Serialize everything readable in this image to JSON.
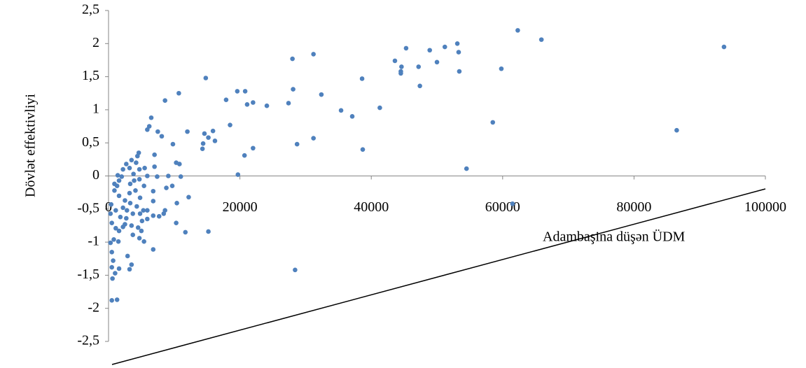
{
  "chart_data": {
    "type": "scatter",
    "x_label": "Adambaşina düşən ÜDM",
    "y_label": "Dövlət effektivliyi",
    "color": "#4f81bd",
    "xlim": [
      0,
      100000
    ],
    "xticks": [
      0,
      20000,
      40000,
      60000,
      80000,
      100000
    ],
    "ylim": [
      -2.5,
      2.5
    ],
    "yticks": [
      {
        "value": -2.5,
        "label": "-2,5"
      },
      -2,
      {
        "value": -1.5,
        "label": "-1,5"
      },
      -1,
      {
        "value": -0.5,
        "label": "-0,5"
      },
      0,
      {
        "value": 0.5,
        "label": "0,5"
      },
      1,
      {
        "value": 1.5,
        "label": "1,5"
      },
      2,
      {
        "value": 2.5,
        "label": "2,5"
      }
    ],
    "x": [
      93700,
      86500,
      62300,
      65900,
      58500,
      59800,
      61500,
      54500,
      53100,
      53300,
      53400,
      51200,
      48900,
      50000,
      47200,
      47400,
      45300,
      43600,
      44600,
      44500,
      44500,
      41300,
      38600,
      38700,
      35400,
      37100,
      32400,
      31200,
      31200,
      28000,
      28100,
      28700,
      28400,
      27400,
      24100,
      22000,
      20800,
      21100,
      22000,
      20700,
      19600,
      19700,
      18500,
      17900,
      16200,
      15900,
      15200,
      14600,
      14400,
      14300,
      14800,
      15200,
      12000,
      12200,
      11700,
      10700,
      11000,
      10800,
      10300,
      10400,
      10300,
      9800,
      9700,
      8600,
      9100,
      8800,
      8600,
      8400,
      8100,
      7700,
      7500,
      7000,
      7400,
      7000,
      6800,
      6800,
      6800,
      6500,
      6200,
      5900,
      5900,
      5500,
      5900,
      5900,
      5300,
      5400,
      6800,
      4600,
      4400,
      4200,
      4700,
      3800,
      3200,
      3500,
      2700,
      2200,
      1600,
      1300,
      900,
      1600,
      2500,
      3300,
      4300,
      4800,
      5100,
      4500,
      3500,
      2500,
      1600,
      1100,
      500,
      300,
      400,
      1100,
      1800,
      2200,
      800,
      1500,
      300,
      500,
      700,
      500,
      1000,
      600,
      1600,
      3500,
      3200,
      2900,
      500,
      1300,
      5400,
      4700,
      3700,
      2800,
      3200,
      4100,
      4800,
      3900,
      3300,
      2000,
      1400,
      900,
      2200,
      3700,
      2700,
      4700,
      5000
    ],
    "values": [
      1.95,
      0.69,
      2.2,
      2.06,
      0.81,
      1.62,
      -0.42,
      0.11,
      2.0,
      1.87,
      1.58,
      1.95,
      1.9,
      1.72,
      1.65,
      1.36,
      1.93,
      1.74,
      1.65,
      1.58,
      1.55,
      1.03,
      1.47,
      0.4,
      0.99,
      0.9,
      1.23,
      1.84,
      0.57,
      1.77,
      1.31,
      0.48,
      -1.42,
      1.1,
      1.06,
      1.11,
      1.28,
      1.08,
      0.42,
      0.31,
      1.28,
      0.02,
      0.77,
      1.15,
      0.53,
      0.68,
      0.58,
      0.64,
      0.49,
      0.41,
      1.48,
      -0.84,
      0.67,
      -0.32,
      -0.85,
      1.25,
      -0.01,
      0.18,
      0.2,
      -0.41,
      -0.71,
      0.48,
      -0.15,
      1.14,
      0,
      -0.18,
      -0.52,
      -0.57,
      0.6,
      -0.61,
      0.67,
      0.14,
      -0.01,
      0.32,
      -0.23,
      -0.38,
      -0.6,
      0.88,
      0.75,
      0.7,
      0,
      0.12,
      -0.52,
      -0.65,
      -0.52,
      -0.15,
      -1.11,
      0.35,
      0.3,
      0.2,
      0.1,
      0.03,
      0.12,
      0.24,
      0.18,
      0.1,
      -0.07,
      -0.15,
      -0.22,
      -0.3,
      -0.37,
      -0.41,
      -0.46,
      -0.57,
      -0.68,
      -0.78,
      -0.75,
      -0.73,
      -0.83,
      -0.79,
      -0.71,
      -0.57,
      -0.43,
      -0.52,
      -0.62,
      -0.77,
      -0.96,
      -0.99,
      -1.01,
      -1.15,
      -1.28,
      -1.38,
      -1.47,
      -1.55,
      -1.4,
      -1.34,
      -1.41,
      -1.21,
      -1.88,
      -1.87,
      -0.99,
      -0.94,
      -0.89,
      -0.52,
      -0.26,
      -0.22,
      -0.33,
      -0.07,
      -0.12,
      -0.01,
      0.01,
      -0.12,
      -0.48,
      -0.57,
      -0.64,
      -0.05,
      -0.83
    ]
  }
}
